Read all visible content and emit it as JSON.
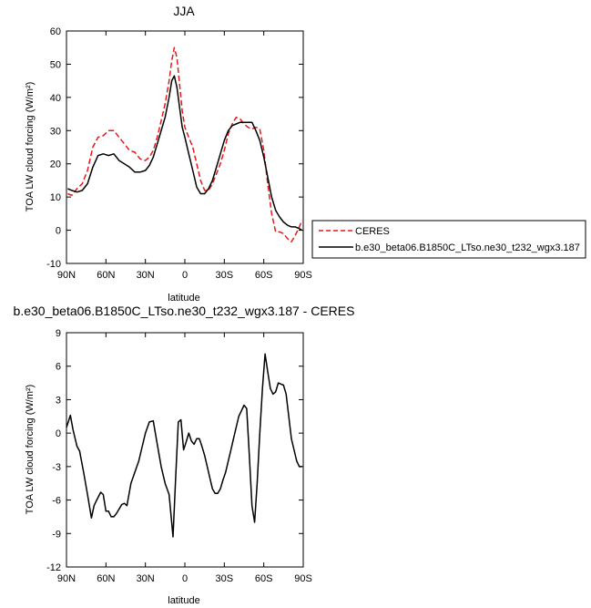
{
  "chart_data": [
    {
      "type": "line",
      "title": "JJA",
      "xlabel": "latitude",
      "ylabel": "TOA LW cloud forcing (W/m²)",
      "xlim": [
        90,
        -90
      ],
      "ylim": [
        -10,
        60
      ],
      "x_ticks": [
        90,
        60,
        30,
        0,
        -30,
        -60,
        -90
      ],
      "x_tick_labels": [
        "90N",
        "60N",
        "30N",
        "0",
        "30S",
        "60S",
        "90S"
      ],
      "y_ticks": [
        -10,
        0,
        10,
        20,
        30,
        40,
        50,
        60
      ],
      "y_tick_labels": [
        "-10",
        "0",
        "10",
        "20",
        "30",
        "40",
        "50",
        "60"
      ],
      "legend_position": "right",
      "series": [
        {
          "name": "CERES",
          "color": "#e31a1c",
          "dash": "dashed",
          "x": [
            89,
            86,
            82,
            78,
            74,
            70,
            66,
            62,
            58,
            54,
            50,
            46,
            42,
            38,
            34,
            30,
            27,
            24,
            21,
            18,
            15,
            12,
            10,
            8,
            6,
            4,
            2,
            0,
            -3,
            -6,
            -9,
            -12,
            -15,
            -18,
            -21,
            -24,
            -27,
            -30,
            -33,
            -36,
            -39,
            -42,
            -45,
            -48,
            -51,
            -54,
            -57,
            -60,
            -63,
            -66,
            -69,
            -72,
            -75,
            -78,
            -81,
            -84,
            -87,
            -89
          ],
          "y": [
            11,
            10.5,
            12.5,
            14,
            18,
            25,
            28,
            28.5,
            30,
            30,
            28,
            26,
            24,
            23.5,
            21.5,
            21,
            22,
            24,
            28,
            33,
            38,
            45,
            51,
            55,
            52,
            44,
            36,
            31,
            28,
            25,
            20,
            15,
            12,
            12,
            14,
            17,
            20,
            24,
            29,
            32,
            34,
            33.5,
            32,
            31,
            30.5,
            31,
            30.5,
            24,
            14,
            5,
            -0.5,
            -0.5,
            -1,
            -2.5,
            -3.5,
            -1.5,
            1,
            3
          ]
        },
        {
          "name": "b.e30_beta06.B1850C_LTso.ne30_t232_wgx3.187",
          "color": "#000000",
          "dash": "solid",
          "x": [
            89,
            86,
            82,
            78,
            74,
            70,
            66,
            62,
            58,
            54,
            50,
            46,
            42,
            38,
            34,
            30,
            27,
            24,
            21,
            18,
            15,
            12,
            10,
            8,
            6,
            4,
            2,
            0,
            -3,
            -6,
            -9,
            -12,
            -15,
            -18,
            -21,
            -24,
            -27,
            -30,
            -33,
            -36,
            -39,
            -42,
            -45,
            -48,
            -51,
            -54,
            -57,
            -60,
            -63,
            -66,
            -69,
            -72,
            -75,
            -78,
            -81,
            -84,
            -87,
            -89
          ],
          "y": [
            12.5,
            12,
            11.5,
            12,
            14,
            19,
            22.5,
            23,
            22.5,
            23,
            21,
            20,
            19,
            17.5,
            17.5,
            18,
            19.5,
            22,
            26,
            30,
            34,
            40,
            45,
            46.5,
            43,
            37,
            31,
            28,
            23,
            18,
            13,
            11,
            11,
            12.5,
            15,
            19,
            23,
            27,
            30,
            31.5,
            32,
            32.5,
            32.5,
            32.5,
            32.5,
            30,
            27,
            22,
            16,
            10,
            6,
            4,
            2.5,
            1.5,
            1,
            1,
            0.5,
            0
          ]
        }
      ]
    },
    {
      "type": "line",
      "title": "b.e30_beta06.B1850C_LTso.ne30_t232_wgx3.187 - CERES",
      "xlabel": "latitude",
      "ylabel": "TOA LW cloud forcing (W/m²)",
      "xlim": [
        90,
        -90
      ],
      "ylim": [
        -12,
        9
      ],
      "x_ticks": [
        90,
        60,
        30,
        0,
        -30,
        -60,
        -90
      ],
      "x_tick_labels": [
        "90N",
        "60N",
        "30N",
        "0",
        "30S",
        "60S",
        "90S"
      ],
      "y_ticks": [
        -12,
        -9,
        -6,
        -3,
        0,
        3,
        6,
        9
      ],
      "y_tick_labels": [
        "-12",
        "-9",
        "-6",
        "-3",
        "0",
        "3",
        "6",
        "9"
      ],
      "series": [
        {
          "color": "#000000",
          "dash": "solid",
          "x": [
            90,
            87,
            85,
            82,
            80,
            77,
            74,
            71,
            69,
            67,
            64,
            62,
            60,
            58,
            56,
            54,
            52,
            50,
            48,
            46,
            44,
            41,
            38,
            35,
            33,
            30,
            27,
            24,
            21,
            18,
            15,
            12,
            9,
            7,
            5,
            3,
            1,
            -1,
            -3,
            -5,
            -7,
            -9,
            -11,
            -13,
            -15,
            -17,
            -19,
            -21,
            -23,
            -25,
            -27,
            -29,
            -31,
            -33,
            -35,
            -37,
            -39,
            -41,
            -43,
            -45,
            -47,
            -49,
            -51,
            -53,
            -55,
            -57,
            -59,
            -61,
            -63,
            -65,
            -67,
            -69,
            -71,
            -73,
            -75,
            -77,
            -79,
            -81,
            -83,
            -85,
            -87,
            -89
          ],
          "y": [
            0.5,
            1.6,
            0.3,
            -1.2,
            -1.6,
            -3.5,
            -5.5,
            -7.6,
            -6.5,
            -6,
            -5.3,
            -5.5,
            -7,
            -7,
            -7.5,
            -7.5,
            -7.2,
            -6.8,
            -6.4,
            -6.3,
            -6.5,
            -4.5,
            -3.5,
            -2.5,
            -1.5,
            0,
            1,
            1.1,
            -1,
            -3,
            -4.5,
            -5.5,
            -9.3,
            -4,
            1,
            1.2,
            -1.5,
            -0.8,
            0,
            -0.7,
            -1,
            -0.5,
            -0.5,
            -1.2,
            -2,
            -3,
            -4,
            -5,
            -5.4,
            -5.4,
            -5,
            -4.2,
            -3.5,
            -2.5,
            -1.5,
            -0.5,
            0.5,
            1.5,
            2,
            2.5,
            2.2,
            -2,
            -6.5,
            -8,
            -4.5,
            0,
            4,
            7.1,
            5.5,
            4,
            3.5,
            3.7,
            4.5,
            4.4,
            4.3,
            3.5,
            1.5,
            -0.5,
            -1.5,
            -2.5,
            -3,
            -3
          ]
        }
      ]
    }
  ]
}
